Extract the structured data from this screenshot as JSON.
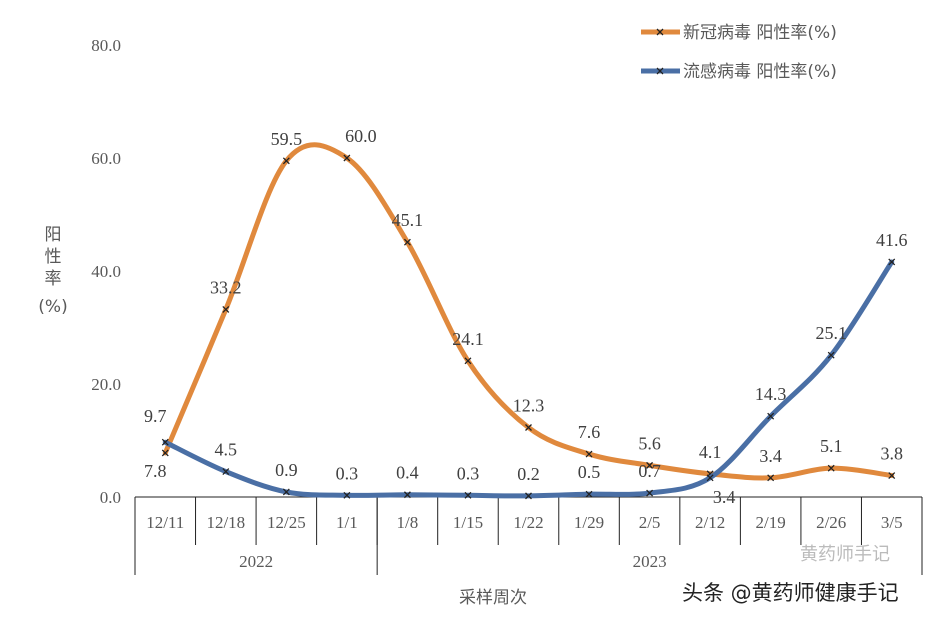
{
  "chart_data": {
    "type": "line",
    "title": "",
    "xlabel": "采样周次",
    "ylabel": "阳性率(%)",
    "ylabel_chars": [
      "阳",
      "性",
      "率",
      "(%)"
    ],
    "ylim": [
      0,
      80
    ],
    "yticks": [
      "0.0",
      "20.0",
      "40.0",
      "60.0",
      "80.0"
    ],
    "categories": [
      "12/11",
      "12/18",
      "12/25",
      "1/1",
      "1/8",
      "1/15",
      "1/22",
      "1/29",
      "2/5",
      "2/12",
      "2/19",
      "2/26",
      "3/5"
    ],
    "year_groups": [
      {
        "label": "2022",
        "count": 4
      },
      {
        "label": "2023",
        "count": 9
      }
    ],
    "grid": false,
    "legend_position": "top-right",
    "series": [
      {
        "name": "新冠病毒 阳性率(%)",
        "color": "#E0893D",
        "values": [
          7.8,
          33.2,
          59.5,
          60.0,
          45.1,
          24.1,
          12.3,
          7.6,
          5.6,
          4.1,
          3.4,
          5.1,
          3.8
        ],
        "labels": [
          "7.8",
          "33.2",
          "59.5",
          "60.0",
          "45.1",
          "24.1",
          "12.3",
          "7.6",
          "5.6",
          "4.1",
          "3.4",
          "5.1",
          "3.8"
        ]
      },
      {
        "name": "流感病毒 阳性率(%)",
        "color": "#4A6FA5",
        "values": [
          9.7,
          4.5,
          0.9,
          0.3,
          0.4,
          0.3,
          0.2,
          0.5,
          0.7,
          3.4,
          14.3,
          25.1,
          41.6
        ],
        "labels": [
          "9.7",
          "4.5",
          "0.9",
          "0.3",
          "0.4",
          "0.3",
          "0.2",
          "0.5",
          "0.7",
          "3.4",
          "14.3",
          "25.1",
          "41.6"
        ]
      }
    ]
  },
  "watermark": {
    "line1": "黄药师手记",
    "line2": "头条 @黄药师健康手记"
  }
}
